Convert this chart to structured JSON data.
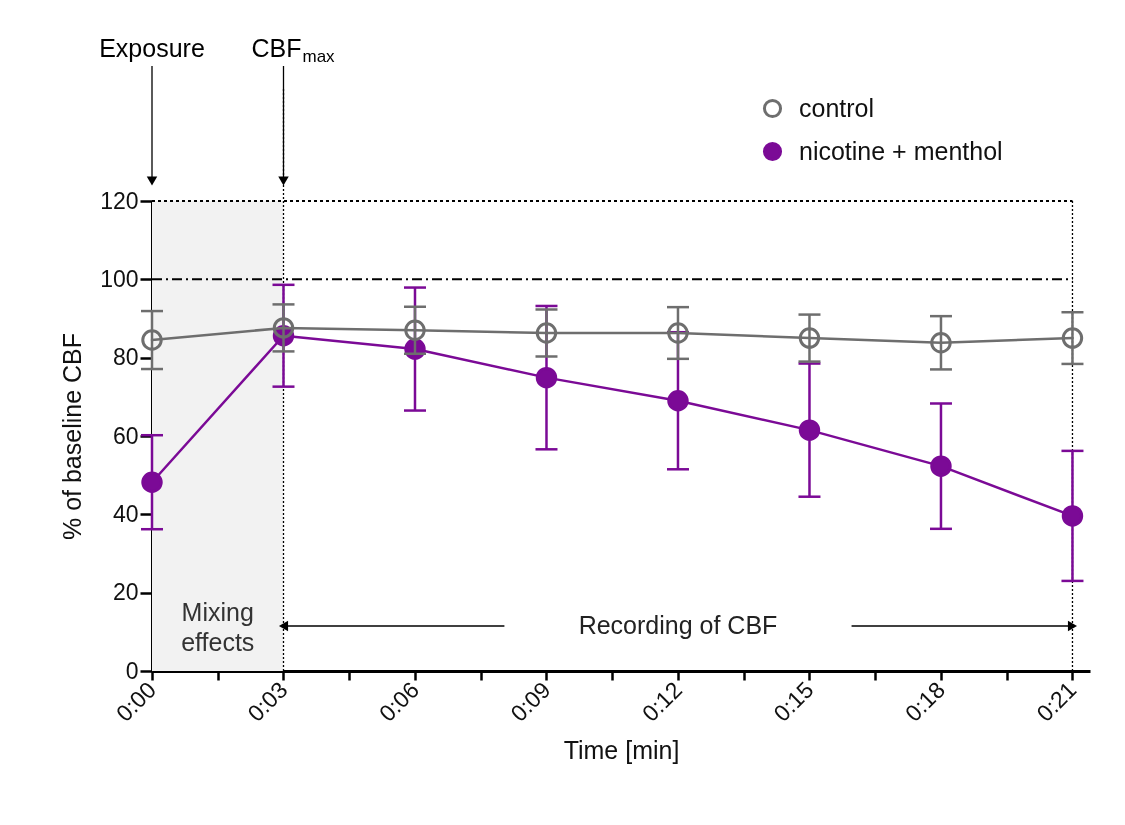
{
  "chart_data": {
    "type": "line",
    "xlabel": "Time [min]",
    "ylabel": "% of baseline CBF",
    "x": [
      0,
      3,
      6,
      9,
      12,
      15,
      18,
      21
    ],
    "series": [
      {
        "name": "control",
        "color": "#6e6e6e",
        "marker": "circle-open",
        "values": [
          84.5,
          87.6,
          87,
          86.3,
          86.3,
          85,
          83.8,
          85
        ],
        "errors": [
          7.4,
          6,
          6,
          6,
          6.6,
          6,
          6.8,
          6.6
        ]
      },
      {
        "name": "nicotine + menthol",
        "color": "#7b0a96",
        "marker": "circle",
        "values": [
          48.2,
          85.6,
          82.2,
          74.9,
          69,
          61.5,
          52.3,
          39.6
        ],
        "errors": [
          12,
          13,
          15.7,
          18.3,
          17.5,
          17,
          16,
          16.6
        ]
      }
    ],
    "xlim": [
      0,
      21.4
    ],
    "xticks": [
      {
        "value": 0,
        "label": "0:00"
      },
      {
        "value": 1.5,
        "label": null
      },
      {
        "value": 3,
        "label": "0:03"
      },
      {
        "value": 4.5,
        "label": null
      },
      {
        "value": 6,
        "label": "0:06"
      },
      {
        "value": 7.5,
        "label": null
      },
      {
        "value": 9,
        "label": "0:09"
      },
      {
        "value": 10.5,
        "label": null
      },
      {
        "value": 12,
        "label": "0:12"
      },
      {
        "value": 13.5,
        "label": null
      },
      {
        "value": 15,
        "label": "0:15"
      },
      {
        "value": 16.5,
        "label": null
      },
      {
        "value": 18,
        "label": "0:18"
      },
      {
        "value": 19.5,
        "label": null
      },
      {
        "value": 21,
        "label": "0:21"
      }
    ],
    "ylim": [
      0,
      120
    ],
    "yticks": [
      0,
      20,
      40,
      60,
      80,
      100,
      120
    ],
    "grid": false,
    "legend": "top right",
    "line_style": "solid",
    "ref_lines": [
      {
        "axis": "x",
        "value": 3,
        "label": "CBF$_{max}$",
        "line_style": "dotted"
      },
      {
        "axis": "x",
        "value": 21,
        "line_style": "dotted"
      },
      {
        "axis": "y",
        "value": 100,
        "line_style": "dashed"
      },
      {
        "axis": "y",
        "value": 120,
        "line_style": "dotted"
      }
    ],
    "bands": [
      {
        "axis": "x",
        "from": 0,
        "to": 3,
        "label": "Mixing effects",
        "color": "#f2f2f2"
      }
    ],
    "annotations": [
      "Exposure",
      "Recording of CBF"
    ]
  }
}
